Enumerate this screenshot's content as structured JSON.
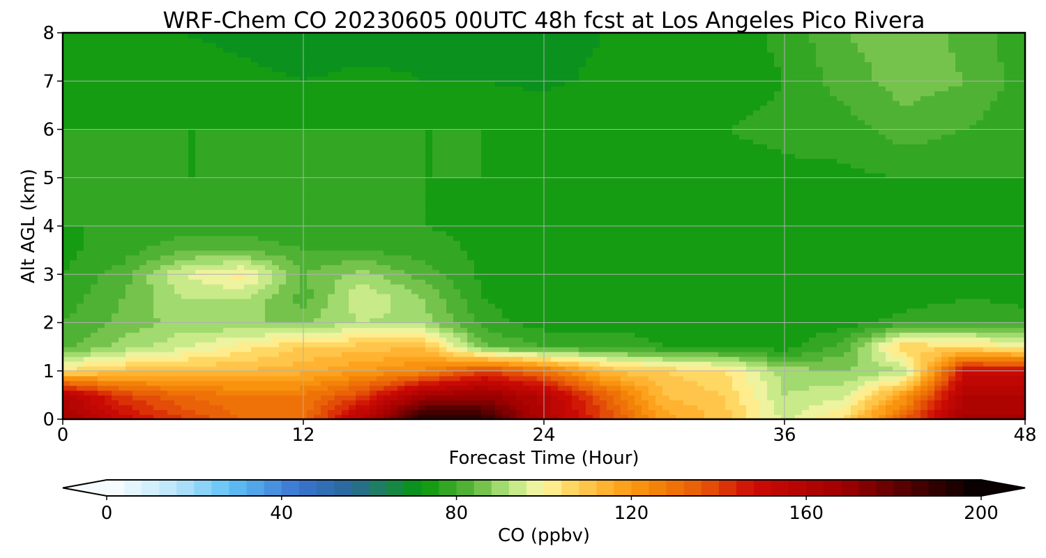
{
  "chart_data": {
    "type": "heatmap",
    "title": "WRF-Chem CO  20230605 00UTC 48h fcst at Los Angeles Pico Rivera",
    "xlabel": "Forecast Time (Hour)",
    "ylabel": "Alt AGL (km)",
    "xlim": [
      0,
      48
    ],
    "ylim": [
      0,
      8
    ],
    "x_ticks": [
      "0",
      "12",
      "24",
      "36",
      "48"
    ],
    "y_ticks": [
      "0",
      "1",
      "2",
      "3",
      "4",
      "5",
      "6",
      "7",
      "8"
    ],
    "grid": true,
    "x": [
      0,
      3,
      6,
      9,
      12,
      15,
      18,
      21,
      24,
      27,
      30,
      33,
      36,
      39,
      42,
      45,
      48
    ],
    "y": [
      0,
      0.5,
      1,
      1.5,
      2,
      2.5,
      3,
      3.5,
      4,
      5,
      6,
      7,
      8
    ],
    "z": [
      [
        165,
        150,
        140,
        132,
        130,
        160,
        195,
        190,
        160,
        140,
        118,
        110,
        95,
        105,
        135,
        165,
        165
      ],
      [
        160,
        140,
        132,
        128,
        128,
        140,
        165,
        170,
        158,
        135,
        112,
        108,
        92,
        95,
        120,
        160,
        160
      ],
      [
        105,
        110,
        112,
        112,
        115,
        120,
        125,
        140,
        130,
        112,
        108,
        104,
        90,
        88,
        92,
        150,
        150
      ],
      [
        82,
        90,
        95,
        102,
        108,
        110,
        112,
        85,
        80,
        80,
        76,
        75,
        74,
        82,
        108,
        105,
        100
      ],
      [
        80,
        85,
        90,
        88,
        88,
        92,
        90,
        78,
        74,
        74,
        74,
        74,
        73,
        74,
        78,
        80,
        78
      ],
      [
        78,
        84,
        92,
        92,
        82,
        96,
        88,
        76,
        72,
        73,
        72,
        72,
        72,
        72,
        74,
        76,
        75
      ],
      [
        76,
        82,
        96,
        102,
        84,
        90,
        82,
        75,
        72,
        72,
        72,
        72,
        72,
        72,
        73,
        74,
        74
      ],
      [
        75,
        78,
        84,
        84,
        80,
        80,
        78,
        75,
        73,
        72,
        72,
        72,
        72,
        72,
        73,
        74,
        74
      ],
      [
        76,
        76,
        77,
        77,
        76,
        76,
        76,
        75,
        74,
        73,
        72,
        72,
        73,
        73,
        74,
        75,
        75
      ],
      [
        77,
        76,
        76,
        76,
        76,
        77,
        76,
        76,
        75,
        75,
        75,
        74,
        75,
        75,
        76,
        76,
        76
      ],
      [
        76,
        76,
        76,
        76,
        76,
        76,
        76,
        76,
        76,
        76,
        76,
        76,
        77,
        78,
        82,
        80,
        77
      ],
      [
        74,
        74,
        74,
        73,
        72,
        73,
        72,
        72,
        71,
        73,
        73,
        74,
        76,
        82,
        86,
        84,
        78
      ],
      [
        73,
        72,
        72,
        71,
        70,
        70,
        71,
        71,
        70,
        72,
        73,
        74,
        77,
        84,
        86,
        83,
        77
      ]
    ],
    "colorbar": {
      "label": "CO  (ppbv)",
      "min": 0,
      "max": 200,
      "step": 4,
      "extend": "both",
      "ticks": [
        "0",
        "40",
        "80",
        "120",
        "160",
        "200"
      ],
      "colormap": [
        [
          0,
          "#ffffff"
        ],
        [
          16,
          "#b8e4fa"
        ],
        [
          28,
          "#60c2f4"
        ],
        [
          44,
          "#3a74d0"
        ],
        [
          56,
          "#2a6898"
        ],
        [
          64,
          "#1b8354"
        ],
        [
          72,
          "#06960a"
        ],
        [
          84,
          "#5fb83c"
        ],
        [
          92,
          "#b7e57e"
        ],
        [
          100,
          "#fff7a8"
        ],
        [
          104,
          "#ffe070"
        ],
        [
          116,
          "#ffaa24"
        ],
        [
          124,
          "#f58a08"
        ],
        [
          136,
          "#e85a08"
        ],
        [
          148,
          "#cc0a04"
        ],
        [
          168,
          "#a00000"
        ],
        [
          188,
          "#3a0000"
        ],
        [
          200,
          "#000000"
        ]
      ]
    }
  }
}
